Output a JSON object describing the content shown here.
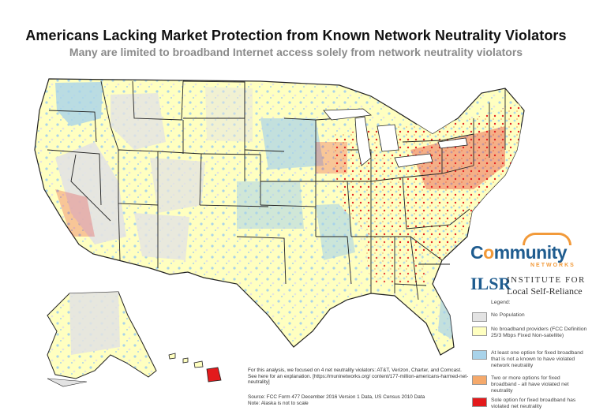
{
  "title": "Americans Lacking Market Protection from Known Network Neutrality Violators",
  "subtitle": "Many are limited to broadband Internet access solely from network neutrality violators",
  "colors": {
    "no_population": "#e3e3e3",
    "no_providers": "#ffffc0",
    "one_option_not_violator": "#a9d3ea",
    "multiple_violators": "#f5a96b",
    "sole_violator": "#e31a1c",
    "ocean": "#ffffff",
    "borders": "#222222"
  },
  "legend": {
    "title": "Legend:",
    "items": [
      {
        "label": "No Population",
        "color": "#e3e3e3"
      },
      {
        "label": "No broadband providers (FCC Definition 25/3 Mbps Fixed Non-satellite)",
        "color": "#ffffc0"
      },
      {
        "label": "At least one option for fixed broadband that is not a known to have violated network neutrality",
        "color": "#a9d3ea"
      },
      {
        "label": "Two or more options for fixed broadband - all have violated net neutrality",
        "color": "#f5a96b"
      },
      {
        "label": "Sole option for fixed broadband has violated net neutrality",
        "color": "#e31a1c"
      }
    ]
  },
  "logos": {
    "community_networks": {
      "word": "Community",
      "sub": "NETWORKS"
    },
    "ilsr": {
      "mark": "ILSR",
      "line1": "INSTITUTE FOR",
      "line2": "Local Self-Reliance"
    }
  },
  "note": "For this analysis, we focused on 4 net neutrality violators: AT&T, Verizon, Charter, and Comcast. See here for an explanation. [https://muninetworks.org/ content/177-million-americans-harmed-net-neutrality]",
  "source": "Source: FCC Form 477 December 2016 Version 1 Data, US Census 2010 Data",
  "source_note": "Note: Alaska is not to scale"
}
